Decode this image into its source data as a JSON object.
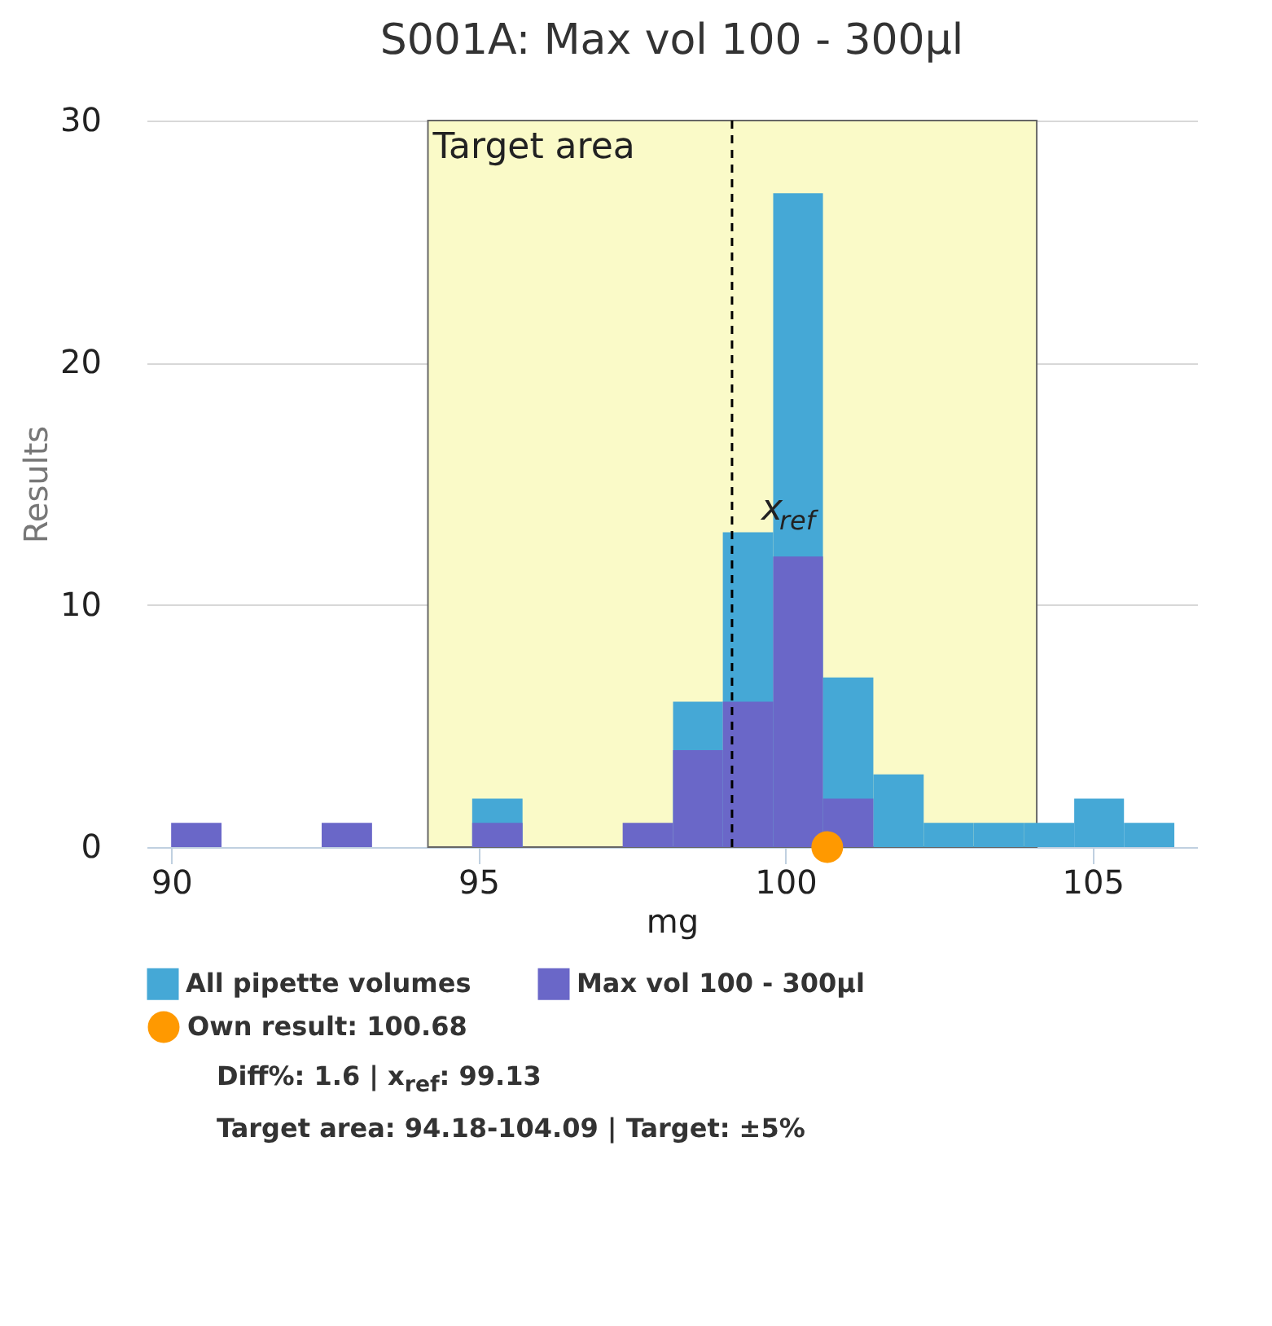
{
  "chart_data": {
    "type": "histogram",
    "title": "S001A: Max vol 100 - 300µl",
    "xlabel": "mg",
    "ylabel": "Results",
    "bins": [
      90,
      90.82,
      92.45,
      93.27,
      94.9,
      95.72,
      97.35,
      98.17,
      98.98,
      99.8,
      100.61,
      101.43,
      102.25,
      103.06,
      103.88,
      104.7,
      105.51,
      106.33
    ],
    "series": [
      {
        "name": "All pipette volumes",
        "color": "#45a8d6",
        "values": [
          null,
          0,
          null,
          0,
          2,
          0,
          null,
          6,
          13,
          27,
          7,
          3,
          1,
          1,
          1,
          2,
          1
        ]
      },
      {
        "name": "Max vol 100 - 300µl",
        "color": "#6a67c8",
        "values": [
          1,
          0,
          1,
          0,
          1,
          0,
          1,
          4,
          6,
          12,
          2,
          0,
          0,
          0,
          0,
          0,
          0
        ]
      },
      {
        "type": "scatter",
        "name": "Own result: 100.68",
        "color": "#ff9900",
        "x": [
          100.68
        ],
        "values": [
          0
        ]
      }
    ],
    "xlim": [
      89.6,
      106.7
    ],
    "xticks": [
      90,
      95,
      100,
      105
    ],
    "ylim": [
      0,
      30
    ],
    "yticks": [
      0,
      10,
      20,
      30
    ],
    "grid": "y",
    "legend": "bottom",
    "bands": [
      {
        "axis": "x",
        "from": 94.18,
        "to": 104.09,
        "label": "Target area",
        "color": "#fafac8"
      }
    ],
    "ref_lines": [
      {
        "axis": "x",
        "value": 99.13,
        "label": "x$_{ref}$",
        "line_style": "dashed",
        "color": "#000000"
      }
    ],
    "annotations": [
      "Diff%: 1.6 | x$_{ref}$: 99.13",
      "Target area: 94.18-104.09 | Target: ±5%"
    ]
  }
}
